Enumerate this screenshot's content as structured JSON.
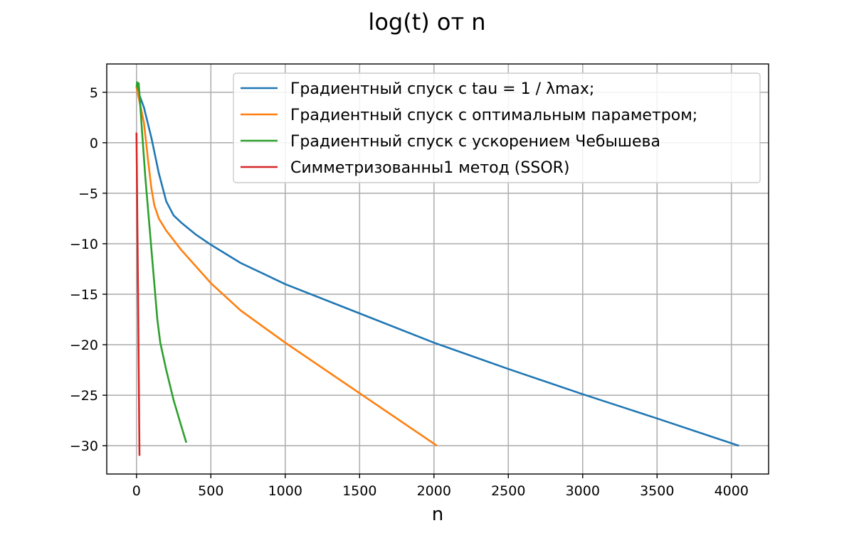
{
  "chart_data": {
    "type": "line",
    "title": "log(t) от n",
    "xlabel": "n",
    "ylabel": "",
    "xlim": [
      -200,
      4250
    ],
    "ylim": [
      -32.8,
      7.8
    ],
    "xticks": [
      0,
      500,
      1000,
      1500,
      2000,
      2500,
      3000,
      3500,
      4000
    ],
    "yticks": [
      5,
      0,
      -5,
      -10,
      -15,
      -20,
      -25,
      -30
    ],
    "xtick_labels": [
      "0",
      "500",
      "1000",
      "1500",
      "2000",
      "2500",
      "3000",
      "3500",
      "4000"
    ],
    "ytick_labels": [
      "5",
      "0",
      "−5",
      "−10",
      "−15",
      "−20",
      "−25",
      "−30"
    ],
    "grid": true,
    "legend_position": "top-right",
    "series": [
      {
        "name": "Градиентный спуск с tau = 1 / λmax;",
        "color": "#1f77b4",
        "x": [
          0,
          50,
          100,
          150,
          200,
          250,
          300,
          400,
          500,
          700,
          1000,
          1500,
          2000,
          2500,
          3000,
          3500,
          4050
        ],
        "y": [
          5.5,
          3.5,
          0.5,
          -3.0,
          -5.8,
          -7.2,
          -7.9,
          -9.1,
          -10.1,
          -11.9,
          -14.0,
          -16.9,
          -19.8,
          -22.4,
          -24.9,
          -27.3,
          -30.0
        ]
      },
      {
        "name": "Градиентный спуск с оптимальным параметром;",
        "color": "#ff7f0e",
        "x": [
          0,
          50,
          80,
          100,
          120,
          150,
          200,
          300,
          500,
          700,
          1000,
          1500,
          2020
        ],
        "y": [
          5.5,
          2.0,
          -2.0,
          -4.5,
          -6.2,
          -7.5,
          -8.7,
          -10.6,
          -13.9,
          -16.6,
          -19.8,
          -24.8,
          -30.0
        ]
      },
      {
        "name": "Градиентный спуск с ускорением Чебышева",
        "color": "#2ca02c",
        "x": [
          0,
          5,
          10,
          15,
          20,
          40,
          60,
          80,
          100,
          120,
          140,
          160,
          200,
          250,
          300,
          335
        ],
        "y": [
          5.5,
          6.0,
          5.3,
          5.9,
          4.8,
          0.5,
          -3.5,
          -7.0,
          -10.5,
          -14.0,
          -17.5,
          -19.8,
          -22.5,
          -25.5,
          -28.0,
          -29.7
        ]
      },
      {
        "name": "Симметризованны1 метод (SSOR)",
        "color": "#d62728",
        "x": [
          0,
          5,
          10,
          15,
          20
        ],
        "y": [
          1.0,
          -6.5,
          -14.5,
          -22.5,
          -31.0
        ]
      }
    ]
  }
}
